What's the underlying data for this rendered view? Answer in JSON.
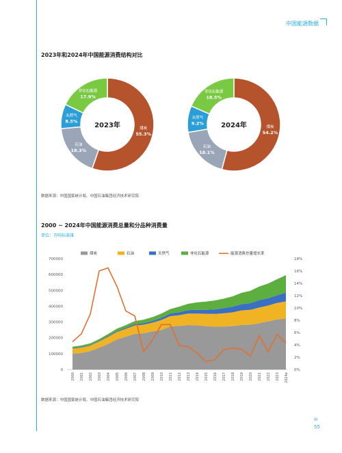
{
  "header": {
    "title": "中国能源数据"
  },
  "section1": {
    "title": "2023年和2024年中国能源消费结构对比",
    "source": "数据来源：中国国家统计局、中国石油集团经济技术研究院"
  },
  "section2": {
    "title": "2000 ~ 2024年中国能源消费总量和分品种消费量",
    "unit": "单位：万吨标准煤",
    "source": "数据来源：中国国家统计局、中国石油集团经济技术研究院"
  },
  "page": {
    "mark": "III",
    "number": "55"
  },
  "colors": {
    "coal": "#b5532d",
    "oil": "#9aa6b8",
    "gas": "#2b9ed8",
    "nonfossil": "#7ac943",
    "area_coal": "#999999",
    "area_oil": "#f0b323",
    "area_gas": "#3a6fc4",
    "area_nonfossil": "#5cae3e",
    "growth": "#e0702e",
    "accent": "#29aee0"
  },
  "chart_data": [
    {
      "type": "pie",
      "center_label": "2023年",
      "slices": [
        {
          "label": "煤炭",
          "value": 55.3,
          "value_label": "55.3%"
        },
        {
          "label": "石油",
          "value": 18.3,
          "value_label": "18.3%"
        },
        {
          "label": "天然气",
          "value": 8.5,
          "value_label": "8.5%"
        },
        {
          "label": "非化石能源",
          "value": 17.9,
          "value_label": "17.9%"
        }
      ]
    },
    {
      "type": "pie",
      "center_label": "2024年",
      "slices": [
        {
          "label": "煤炭",
          "value": 54.2,
          "value_label": "54.2%"
        },
        {
          "label": "石油",
          "value": 18.1,
          "value_label": "18.1%"
        },
        {
          "label": "天然气",
          "value": 9.2,
          "value_label": "9.2%"
        },
        {
          "label": "非化石能源",
          "value": 18.5,
          "value_label": "18.5%"
        }
      ]
    },
    {
      "type": "area",
      "categories": [
        "2000",
        "2001",
        "2002",
        "2003",
        "2004",
        "2005",
        "2006",
        "2007",
        "2008",
        "2009",
        "2010",
        "2011",
        "2012",
        "2013",
        "2014",
        "2015",
        "2016",
        "2017",
        "2018",
        "2019",
        "2020",
        "2021",
        "2022",
        "2023",
        "2024e"
      ],
      "ylim": [
        0,
        700000
      ],
      "yticks": [
        0,
        100000,
        200000,
        300000,
        400000,
        500000,
        600000,
        700000
      ],
      "y2lim": [
        0,
        18
      ],
      "y2ticks": [
        "0%",
        "2%",
        "4%",
        "6%",
        "8%",
        "10%",
        "12%",
        "14%",
        "16%",
        "18%"
      ],
      "legend": [
        "煤炭",
        "石油",
        "天然气",
        "非化石能源",
        "能源消费总量增长率"
      ],
      "series": [
        {
          "name": "煤炭",
          "values": [
            100000,
            105000,
            116000,
            138000,
            161000,
            190000,
            207000,
            225000,
            229000,
            241000,
            250000,
            272000,
            275000,
            281000,
            279000,
            274000,
            270000,
            271000,
            274000,
            281000,
            283000,
            293000,
            304000,
            316000,
            322000
          ]
        },
        {
          "name": "石油",
          "values": [
            32000,
            33000,
            35000,
            39000,
            45000,
            47000,
            50000,
            53000,
            54000,
            55000,
            63000,
            65000,
            68000,
            72000,
            74000,
            78000,
            81000,
            84000,
            87000,
            92000,
            94000,
            98000,
            100000,
            104000,
            108000
          ]
        },
        {
          "name": "天然气",
          "values": [
            3400,
            3700,
            4000,
            4400,
            5200,
            6100,
            7300,
            8900,
            10000,
            11000,
            14000,
            17000,
            19000,
            22000,
            24000,
            25000,
            28000,
            32000,
            36000,
            39000,
            42000,
            47000,
            46000,
            49000,
            55000
          ]
        },
        {
          "name": "非化石能源",
          "values": [
            9000,
            10000,
            10500,
            11000,
            13000,
            15000,
            16000,
            19000,
            22000,
            24000,
            26000,
            28000,
            35000,
            40000,
            47000,
            52000,
            57000,
            60000,
            65000,
            72000,
            78000,
            86000,
            93000,
            101000,
            111000
          ]
        },
        {
          "name": "能源消费总量增长率",
          "axis": "right",
          "values": [
            4.5,
            5.8,
            9.0,
            16.0,
            16.5,
            13.5,
            9.5,
            8.7,
            2.9,
            4.8,
            7.3,
            7.3,
            3.9,
            3.7,
            2.7,
            1.3,
            1.6,
            3.2,
            3.5,
            3.3,
            2.2,
            5.5,
            2.9,
            5.7,
            4.3
          ]
        }
      ]
    }
  ]
}
